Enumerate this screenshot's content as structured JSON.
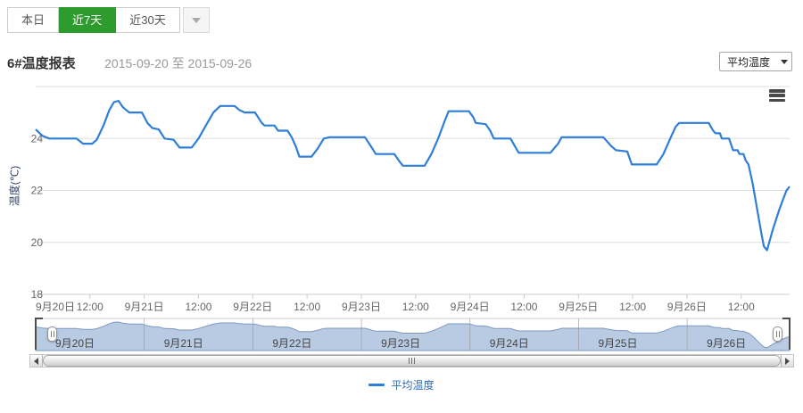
{
  "toolbar": {
    "tabs": [
      {
        "key": "today",
        "label": "本日",
        "active": false
      },
      {
        "key": "last7days",
        "label": "近7天",
        "active": true
      },
      {
        "key": "last30days",
        "label": "近30天",
        "active": false
      }
    ]
  },
  "header": {
    "title": "6#温度报表",
    "date_range": "2015-09-20 至 2015-09-26",
    "series_select": {
      "value": "平均温度"
    }
  },
  "legend": {
    "label": "平均温度"
  },
  "colors": {
    "accent_green": "#2e9b2e",
    "line_blue": "#2f7ed8",
    "navigator_fill": "#b9cbe2",
    "navigator_stroke": "#7e99c0",
    "grid": "#dddddd",
    "axis_line": "#cccccc",
    "axis_text": "#666666",
    "axis_title_text": "#2d3e63"
  },
  "chart_data": {
    "type": "line",
    "title": "6#温度报表",
    "ylabel": "温度(℃)",
    "ylim": [
      18,
      26
    ],
    "y_gridlines": [
      18,
      20,
      22,
      24,
      26
    ],
    "y_tick_labels": [
      "18",
      "20",
      "22",
      "24"
    ],
    "x_unit": "hours_from_2015-09-20_00:00",
    "x_range": [
      0,
      166.7
    ],
    "x_tick_interval_hours": 12,
    "x_tick_labels": [
      "9月20日",
      "12:00",
      "9月21日",
      "12:00",
      "9月22日",
      "12:00",
      "9月23日",
      "12:00",
      "9月24日",
      "12:00",
      "9月25日",
      "12:00",
      "9月26日",
      "12:00"
    ],
    "navigator_day_labels": [
      "9月20日",
      "9月21日",
      "9月22日",
      "9月23日",
      "9月24日",
      "9月25日",
      "9月26日"
    ],
    "legend_position": "bottom",
    "grid": true,
    "series": [
      {
        "name": "平均温度",
        "unit": "℃",
        "points": [
          [
            0,
            24.35
          ],
          [
            1.5,
            24.1
          ],
          [
            3,
            24
          ],
          [
            9,
            24
          ],
          [
            10.5,
            23.8
          ],
          [
            12.5,
            23.8
          ],
          [
            13.5,
            23.95
          ],
          [
            15,
            24.5
          ],
          [
            16.3,
            25.1
          ],
          [
            17.3,
            25.4
          ],
          [
            18.3,
            25.45
          ],
          [
            19.3,
            25.2
          ],
          [
            20.7,
            25
          ],
          [
            23.5,
            25
          ],
          [
            24.7,
            24.6
          ],
          [
            25.8,
            24.4
          ],
          [
            27.2,
            24.35
          ],
          [
            28.5,
            24
          ],
          [
            30.5,
            23.95
          ],
          [
            31.8,
            23.65
          ],
          [
            34.5,
            23.65
          ],
          [
            36,
            24
          ],
          [
            37.8,
            24.55
          ],
          [
            39.3,
            25
          ],
          [
            40.8,
            25.25
          ],
          [
            44,
            25.25
          ],
          [
            45,
            25.1
          ],
          [
            46.2,
            25
          ],
          [
            48.5,
            25
          ],
          [
            50,
            24.6
          ],
          [
            50.6,
            24.5
          ],
          [
            52.8,
            24.5
          ],
          [
            53.6,
            24.3
          ],
          [
            55.7,
            24.3
          ],
          [
            56.6,
            24.05
          ],
          [
            57.5,
            23.7
          ],
          [
            58.3,
            23.3
          ],
          [
            61,
            23.3
          ],
          [
            62.3,
            23.6
          ],
          [
            63.7,
            24
          ],
          [
            65,
            24.05
          ],
          [
            72.8,
            24.05
          ],
          [
            74.5,
            23.6
          ],
          [
            75.2,
            23.4
          ],
          [
            79.3,
            23.4
          ],
          [
            80.5,
            23.1
          ],
          [
            81.2,
            22.95
          ],
          [
            86,
            22.95
          ],
          [
            87.5,
            23.4
          ],
          [
            89,
            24
          ],
          [
            90.5,
            24.7
          ],
          [
            91.3,
            25.05
          ],
          [
            95.8,
            25.05
          ],
          [
            96.8,
            24.8
          ],
          [
            97.3,
            24.6
          ],
          [
            99.5,
            24.55
          ],
          [
            100.5,
            24.3
          ],
          [
            101.3,
            24
          ],
          [
            105,
            24
          ],
          [
            106.3,
            23.6
          ],
          [
            106.8,
            23.45
          ],
          [
            113.8,
            23.45
          ],
          [
            115.5,
            23.8
          ],
          [
            116.3,
            24.05
          ],
          [
            125.5,
            24.05
          ],
          [
            127.3,
            23.7
          ],
          [
            128.3,
            23.55
          ],
          [
            130.8,
            23.5
          ],
          [
            131.8,
            23
          ],
          [
            137.3,
            23
          ],
          [
            138.8,
            23.4
          ],
          [
            140.3,
            24
          ],
          [
            141.5,
            24.45
          ],
          [
            142.3,
            24.6
          ],
          [
            148.8,
            24.6
          ],
          [
            149.8,
            24.3
          ],
          [
            150.3,
            24.2
          ],
          [
            151.3,
            24.2
          ],
          [
            151.7,
            24
          ],
          [
            153.3,
            24
          ],
          [
            154.2,
            23.55
          ],
          [
            155.2,
            23.55
          ],
          [
            155.6,
            23.4
          ],
          [
            156.5,
            23.4
          ],
          [
            157,
            23.15
          ],
          [
            157.6,
            23
          ],
          [
            158.5,
            22.3
          ],
          [
            159.5,
            21.3
          ],
          [
            160.5,
            20.3
          ],
          [
            161,
            19.85
          ],
          [
            161.7,
            19.7
          ],
          [
            163,
            20.5
          ],
          [
            164.5,
            21.3
          ],
          [
            166,
            22
          ],
          [
            166.7,
            22.15
          ]
        ]
      }
    ]
  }
}
